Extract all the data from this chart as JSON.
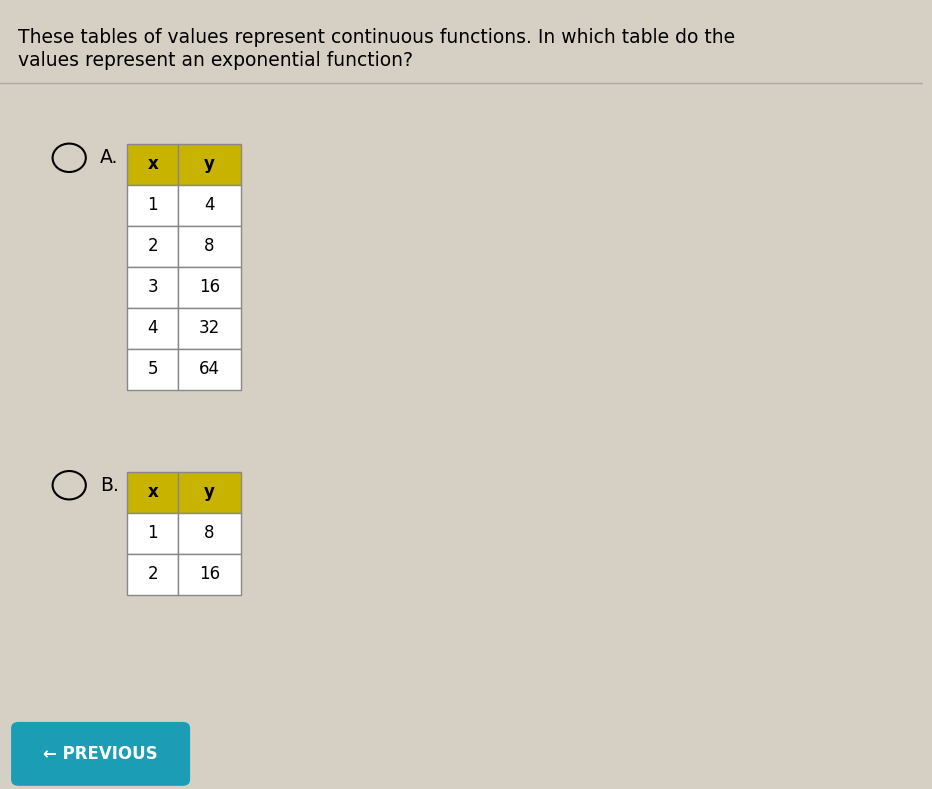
{
  "title_line1": "These tables of values represent continuous functions. In which table do the",
  "title_line2": "values represent an exponential function?",
  "bg_color": "#d6cfc4",
  "header_color": "#c8b400",
  "table_border_color": "#888888",
  "cell_bg_color": "#ffffff",
  "option_A_label": "A.",
  "option_B_label": "B.",
  "table_A": {
    "headers": [
      "x",
      "y"
    ],
    "rows": [
      [
        "1",
        "4"
      ],
      [
        "2",
        "8"
      ],
      [
        "3",
        "16"
      ],
      [
        "4",
        "32"
      ],
      [
        "5",
        "64"
      ]
    ]
  },
  "table_B": {
    "headers": [
      "x",
      "y"
    ],
    "rows": [
      [
        "1",
        "8"
      ],
      [
        "2",
        "16"
      ]
    ]
  },
  "previous_btn_color": "#1a9db5",
  "previous_btn_text": "← PREVIOUS",
  "previous_btn_text_color": "#ffffff",
  "fig_width": 9.32,
  "fig_height": 7.89,
  "dpi": 100
}
